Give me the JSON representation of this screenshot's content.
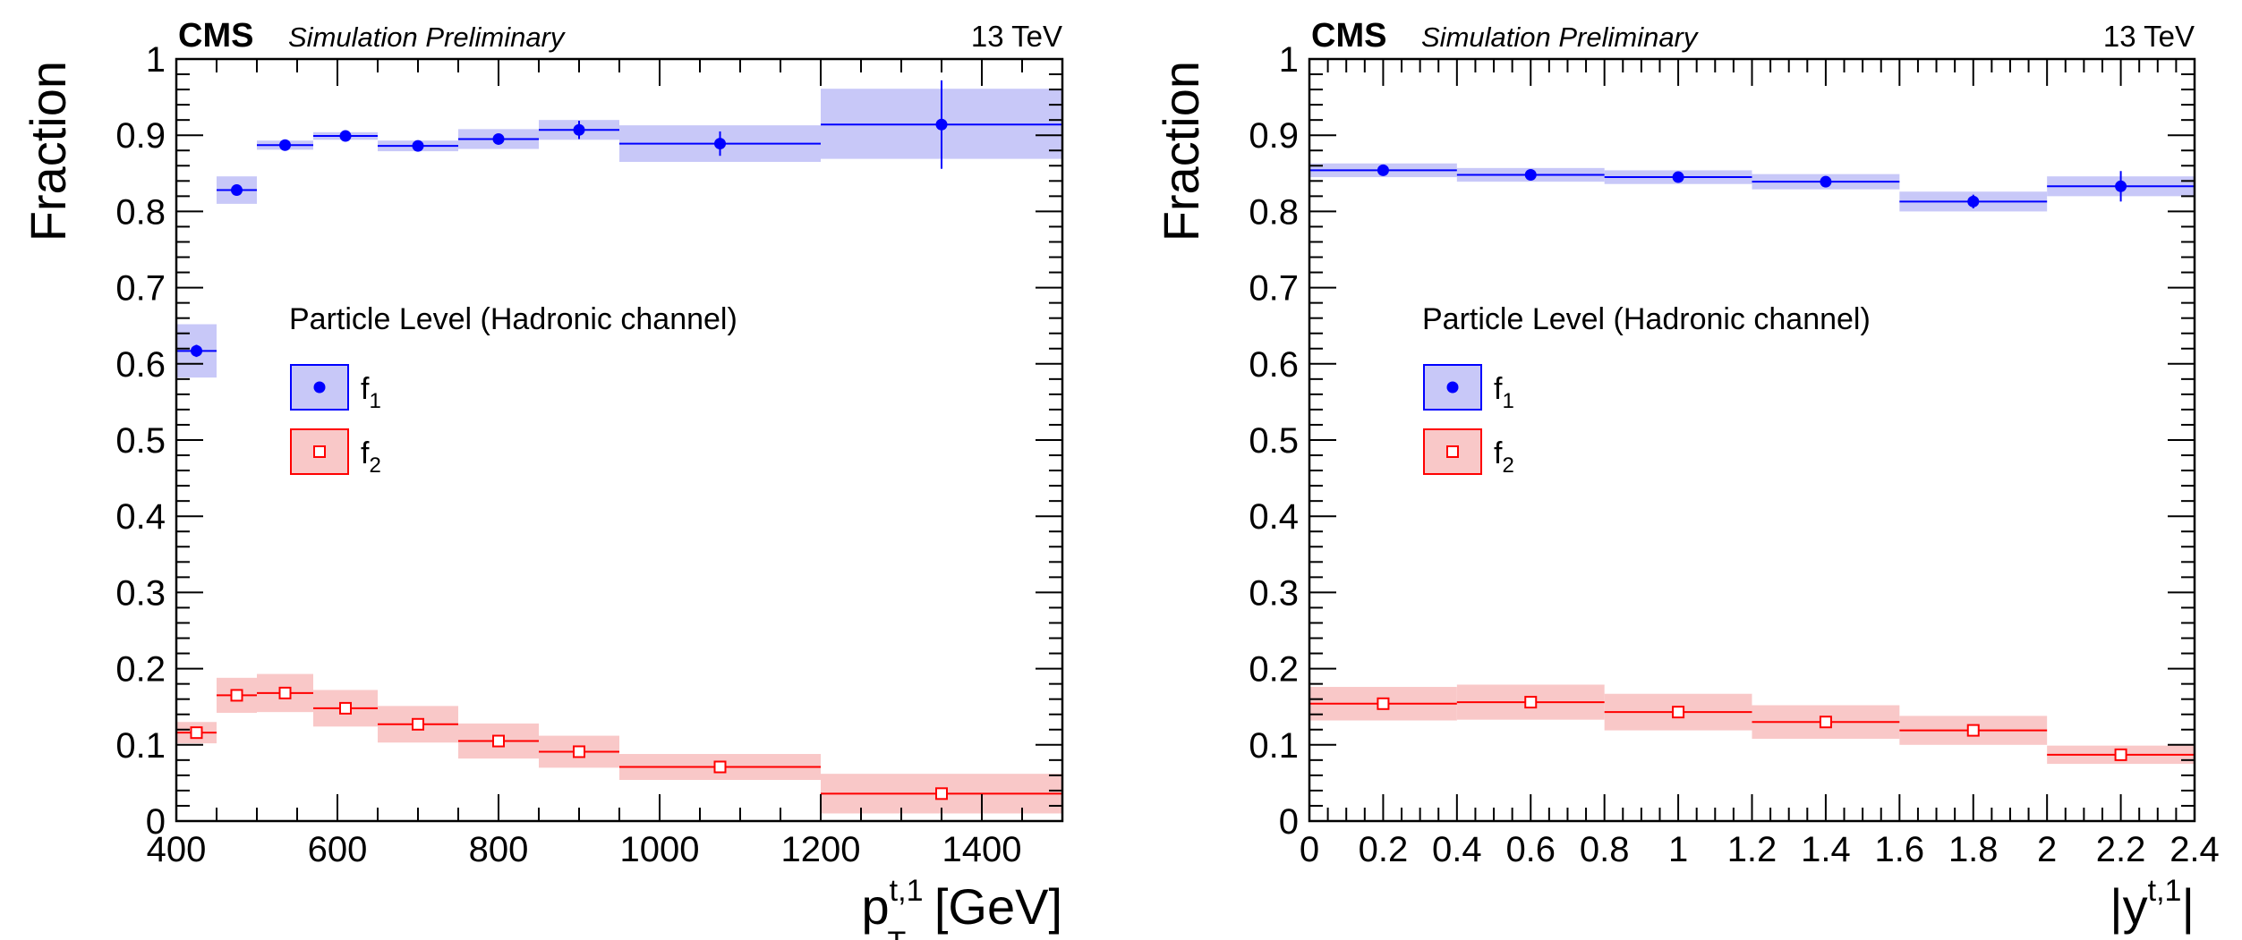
{
  "chart_data": [
    {
      "type": "scatter",
      "experiment": "CMS",
      "status": "Simulation Preliminary",
      "energy": "13 TeV",
      "ylabel": "Fraction",
      "xlabel": {
        "base": "p",
        "sub": "T",
        "sup": "t,1",
        "unit": "[GeV]"
      },
      "xlim": [
        400,
        1500
      ],
      "ylim": [
        0,
        1
      ],
      "xticks": [
        400,
        600,
        800,
        1000,
        1200,
        1400
      ],
      "yticks": [
        0,
        0.1,
        0.2,
        0.3,
        0.4,
        0.5,
        0.6,
        0.7,
        0.8,
        0.9,
        1
      ],
      "legend": {
        "title": "Particle Level (Hadronic channel)",
        "entries": [
          {
            "name": "f",
            "sub": "1"
          },
          {
            "name": "f",
            "sub": "2"
          }
        ],
        "position": "left-middle"
      },
      "series": [
        {
          "name": "f1",
          "marker": "filled-circle",
          "color": "#0000ff",
          "band_color": "#c8c8f8",
          "points": [
            {
              "x": 425,
              "xlo": 400,
              "xhi": 450,
              "y": 0.617,
              "err": 0.008,
              "band": [
                0.582,
                0.652
              ]
            },
            {
              "x": 475,
              "xlo": 450,
              "xhi": 500,
              "y": 0.828,
              "err": 0.004,
              "band": [
                0.81,
                0.846
              ]
            },
            {
              "x": 535,
              "xlo": 500,
              "xhi": 570,
              "y": 0.887,
              "err": 0.004,
              "band": [
                0.881,
                0.893
              ]
            },
            {
              "x": 610,
              "xlo": 570,
              "xhi": 650,
              "y": 0.899,
              "err": 0.004,
              "band": [
                0.894,
                0.904
              ]
            },
            {
              "x": 700,
              "xlo": 650,
              "xhi": 750,
              "y": 0.886,
              "err": 0.004,
              "band": [
                0.879,
                0.893
              ]
            },
            {
              "x": 800,
              "xlo": 750,
              "xhi": 850,
              "y": 0.895,
              "err": 0.005,
              "band": [
                0.882,
                0.908
              ]
            },
            {
              "x": 900,
              "xlo": 850,
              "xhi": 950,
              "y": 0.907,
              "err": 0.012,
              "band": [
                0.894,
                0.92
              ]
            },
            {
              "x": 1075,
              "xlo": 950,
              "xhi": 1200,
              "y": 0.889,
              "err": 0.016,
              "band": [
                0.865,
                0.913
              ]
            },
            {
              "x": 1350,
              "xlo": 1200,
              "xhi": 1500,
              "y": 0.914,
              "err": 0.058,
              "band": [
                0.869,
                0.961
              ]
            }
          ]
        },
        {
          "name": "f2",
          "marker": "open-square",
          "color": "#ff0000",
          "band_color": "#f9c8c8",
          "points": [
            {
              "x": 425,
              "xlo": 400,
              "xhi": 450,
              "y": 0.116,
              "err": 0.006,
              "band": [
                0.102,
                0.13
              ]
            },
            {
              "x": 475,
              "xlo": 450,
              "xhi": 500,
              "y": 0.165,
              "err": 0.005,
              "band": [
                0.142,
                0.188
              ]
            },
            {
              "x": 535,
              "xlo": 500,
              "xhi": 570,
              "y": 0.168,
              "err": 0.005,
              "band": [
                0.143,
                0.193
              ]
            },
            {
              "x": 610,
              "xlo": 570,
              "xhi": 650,
              "y": 0.148,
              "err": 0.005,
              "band": [
                0.124,
                0.172
              ]
            },
            {
              "x": 700,
              "xlo": 650,
              "xhi": 750,
              "y": 0.127,
              "err": 0.005,
              "band": [
                0.103,
                0.151
              ]
            },
            {
              "x": 800,
              "xlo": 750,
              "xhi": 850,
              "y": 0.105,
              "err": 0.005,
              "band": [
                0.082,
                0.128
              ]
            },
            {
              "x": 900,
              "xlo": 850,
              "xhi": 950,
              "y": 0.091,
              "err": 0.005,
              "band": [
                0.07,
                0.112
              ]
            },
            {
              "x": 1075,
              "xlo": 950,
              "xhi": 1200,
              "y": 0.071,
              "err": 0.005,
              "band": [
                0.054,
                0.088
              ]
            },
            {
              "x": 1350,
              "xlo": 1200,
              "xhi": 1500,
              "y": 0.036,
              "err": 0.005,
              "band": [
                0.01,
                0.062
              ]
            }
          ]
        }
      ]
    },
    {
      "type": "scatter",
      "experiment": "CMS",
      "status": "Simulation Preliminary",
      "energy": "13 TeV",
      "ylabel": "Fraction",
      "xlabel": {
        "base": "|y",
        "sub": "",
        "sup": "t,1",
        "unit": "|"
      },
      "xlim": [
        0,
        2.4
      ],
      "ylim": [
        0,
        1
      ],
      "xticks": [
        0,
        0.2,
        0.4,
        0.6,
        0.8,
        1,
        1.2,
        1.4,
        1.6,
        1.8,
        2,
        2.2,
        2.4
      ],
      "yticks": [
        0,
        0.1,
        0.2,
        0.3,
        0.4,
        0.5,
        0.6,
        0.7,
        0.8,
        0.9,
        1
      ],
      "legend": {
        "title": "Particle Level (Hadronic channel)",
        "entries": [
          {
            "name": "f",
            "sub": "1"
          },
          {
            "name": "f",
            "sub": "2"
          }
        ],
        "position": "left-middle"
      },
      "series": [
        {
          "name": "f1",
          "marker": "filled-circle",
          "color": "#0000ff",
          "band_color": "#c8c8f8",
          "points": [
            {
              "x": 0.2,
              "xlo": 0.0,
              "xhi": 0.4,
              "y": 0.854,
              "err": 0.004,
              "band": [
                0.845,
                0.863
              ]
            },
            {
              "x": 0.6,
              "xlo": 0.4,
              "xhi": 0.8,
              "y": 0.848,
              "err": 0.004,
              "band": [
                0.839,
                0.857
              ]
            },
            {
              "x": 1.0,
              "xlo": 0.8,
              "xhi": 1.2,
              "y": 0.845,
              "err": 0.004,
              "band": [
                0.836,
                0.854
              ]
            },
            {
              "x": 1.4,
              "xlo": 1.2,
              "xhi": 1.6,
              "y": 0.839,
              "err": 0.004,
              "band": [
                0.829,
                0.849
              ]
            },
            {
              "x": 1.8,
              "xlo": 1.6,
              "xhi": 2.0,
              "y": 0.813,
              "err": 0.009,
              "band": [
                0.8,
                0.826
              ]
            },
            {
              "x": 2.2,
              "xlo": 2.0,
              "xhi": 2.4,
              "y": 0.833,
              "err": 0.02,
              "band": [
                0.82,
                0.846
              ]
            }
          ]
        },
        {
          "name": "f2",
          "marker": "open-square",
          "color": "#ff0000",
          "band_color": "#f9c8c8",
          "points": [
            {
              "x": 0.2,
              "xlo": 0.0,
              "xhi": 0.4,
              "y": 0.154,
              "err": 0.004,
              "band": [
                0.132,
                0.176
              ]
            },
            {
              "x": 0.6,
              "xlo": 0.4,
              "xhi": 0.8,
              "y": 0.156,
              "err": 0.004,
              "band": [
                0.133,
                0.179
              ]
            },
            {
              "x": 1.0,
              "xlo": 0.8,
              "xhi": 1.2,
              "y": 0.143,
              "err": 0.004,
              "band": [
                0.119,
                0.167
              ]
            },
            {
              "x": 1.4,
              "xlo": 1.2,
              "xhi": 1.6,
              "y": 0.13,
              "err": 0.004,
              "band": [
                0.108,
                0.152
              ]
            },
            {
              "x": 1.8,
              "xlo": 1.6,
              "xhi": 2.0,
              "y": 0.119,
              "err": 0.004,
              "band": [
                0.1,
                0.138
              ]
            },
            {
              "x": 2.2,
              "xlo": 2.0,
              "xhi": 2.4,
              "y": 0.087,
              "err": 0.004,
              "band": [
                0.075,
                0.099
              ]
            }
          ]
        }
      ]
    }
  ]
}
